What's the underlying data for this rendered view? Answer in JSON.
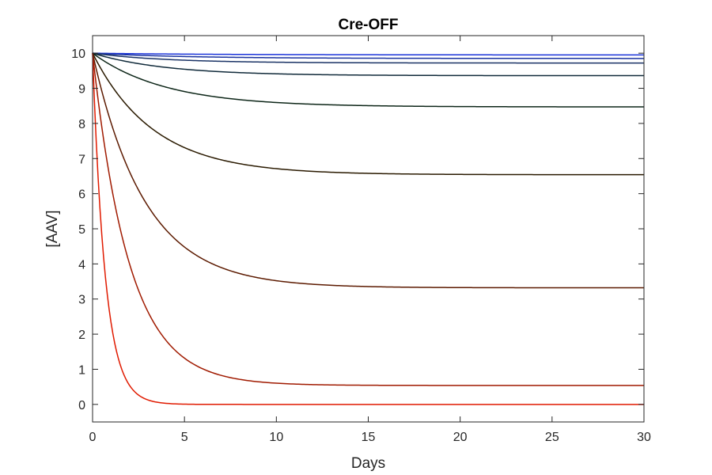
{
  "chart_data": {
    "type": "line",
    "title": "Cre-OFF",
    "xlabel": "Days",
    "ylabel": "[AAV]",
    "xlim": [
      0,
      30
    ],
    "ylim": [
      -0.5,
      10.5
    ],
    "xticks": [
      0,
      5,
      10,
      15,
      20,
      25,
      30
    ],
    "yticks": [
      0,
      1,
      2,
      3,
      4,
      5,
      6,
      7,
      8,
      9,
      10
    ],
    "grid": false,
    "legend": "none",
    "y0": 10,
    "series": [
      {
        "color": "#1a33d9",
        "steady_state": 9.95,
        "decay_rate": 0.15
      },
      {
        "color": "#1a33a0",
        "steady_state": 9.85,
        "decay_rate": 0.2
      },
      {
        "color": "#1a3366",
        "steady_state": 9.72,
        "decay_rate": 0.25
      },
      {
        "color": "#102a3a",
        "steady_state": 9.36,
        "decay_rate": 0.25
      },
      {
        "color": "#0d2618",
        "steady_state": 8.47,
        "decay_rate": 0.25
      },
      {
        "color": "#2a1a00",
        "steady_state": 6.54,
        "decay_rate": 0.3
      },
      {
        "color": "#5c1a00",
        "steady_state": 3.32,
        "decay_rate": 0.35
      },
      {
        "color": "#a01a00",
        "steady_state": 0.54,
        "decay_rate": 0.5
      },
      {
        "color": "#e01a00",
        "steady_state": 0.0,
        "decay_rate": 1.45
      }
    ]
  }
}
